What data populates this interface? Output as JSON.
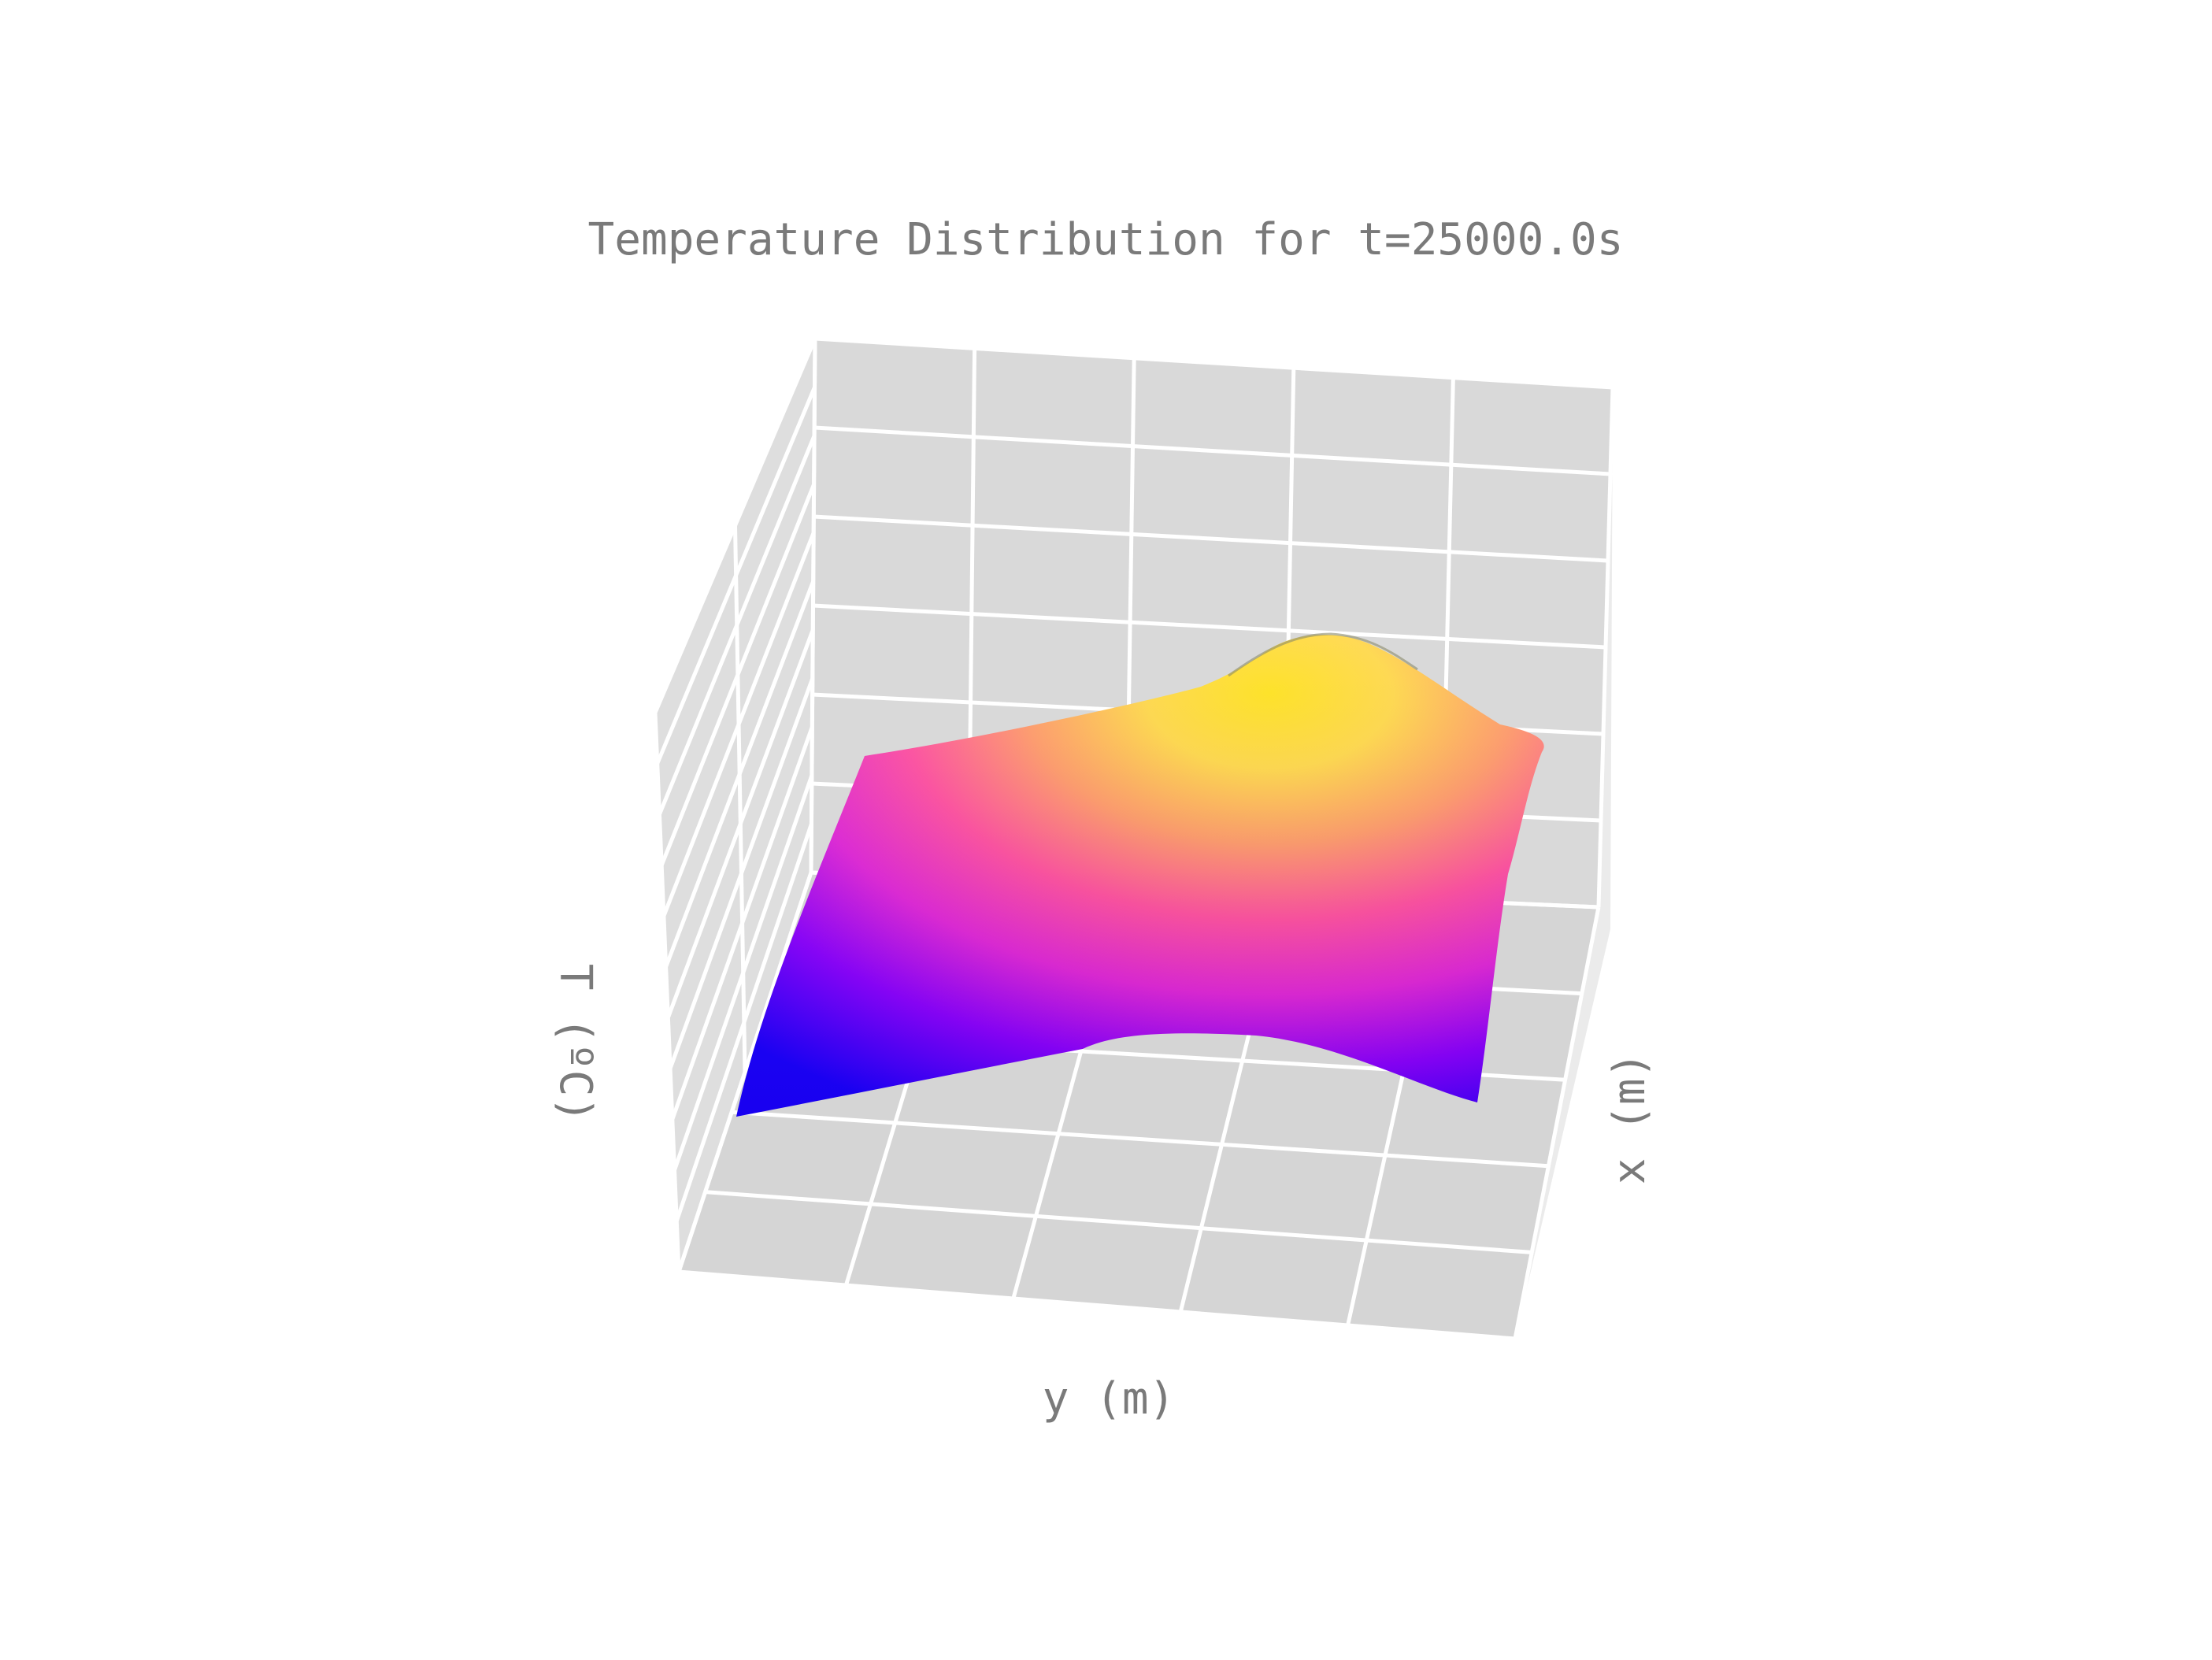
{
  "chart_data": {
    "type": "surface",
    "title": "Temperature Distribution for t=25000.0s",
    "xlabel": "x (m)",
    "ylabel": "y (m)",
    "zlabel": "T (ºC)",
    "grid": true,
    "colormap": "plasma",
    "colormap_colors": [
      "#1a00ff",
      "#8a00ff",
      "#e026d8",
      "#ff4fa0",
      "#ff9a6a",
      "#ffd84a",
      "#ffe21f"
    ],
    "pane_color": "#d9d9d9",
    "grid_color": "#ffffff",
    "surface": {
      "x": [
        0,
        0.25,
        0.5,
        0.75,
        1.0
      ],
      "y": [
        0,
        0.25,
        0.5,
        0.75,
        1.0
      ],
      "description_values_relative": "normalized temperature z[x][y], 0=min, 1=max",
      "z": [
        [
          0.0,
          0.12,
          0.28,
          0.38,
          0.3
        ],
        [
          0.06,
          0.24,
          0.48,
          0.62,
          0.46
        ],
        [
          0.12,
          0.34,
          0.66,
          0.88,
          0.6
        ],
        [
          0.18,
          0.4,
          0.72,
          1.0,
          0.66
        ],
        [
          0.22,
          0.42,
          0.64,
          0.82,
          0.58
        ]
      ]
    }
  }
}
